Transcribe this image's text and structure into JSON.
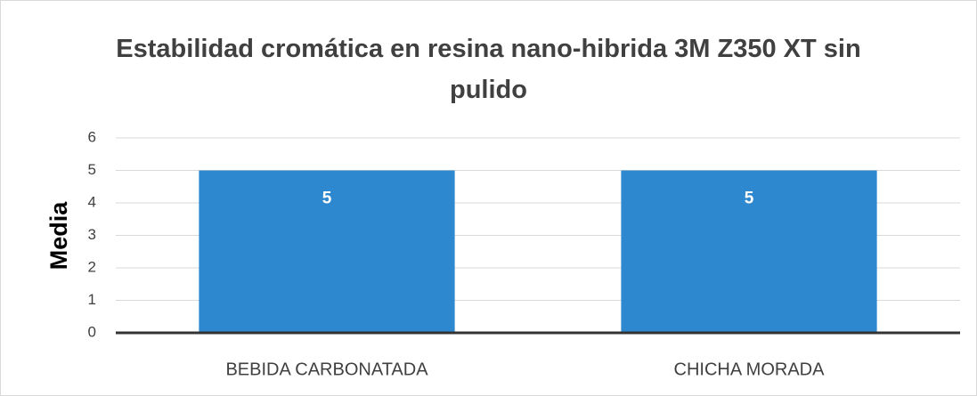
{
  "chart_data": {
    "type": "bar",
    "title": "Estabilidad cromática en resina nano-hibrida 3M Z350 XT sin pulido",
    "ylabel": "Media",
    "categories": [
      "BEBIDA CARBONATADA",
      "CHICHA MORADA"
    ],
    "values": [
      5,
      5
    ],
    "color": "#2e88d0",
    "ylim": [
      0,
      6
    ],
    "yticks": [
      0,
      1,
      2,
      3,
      4,
      5,
      6
    ],
    "grid": true
  }
}
